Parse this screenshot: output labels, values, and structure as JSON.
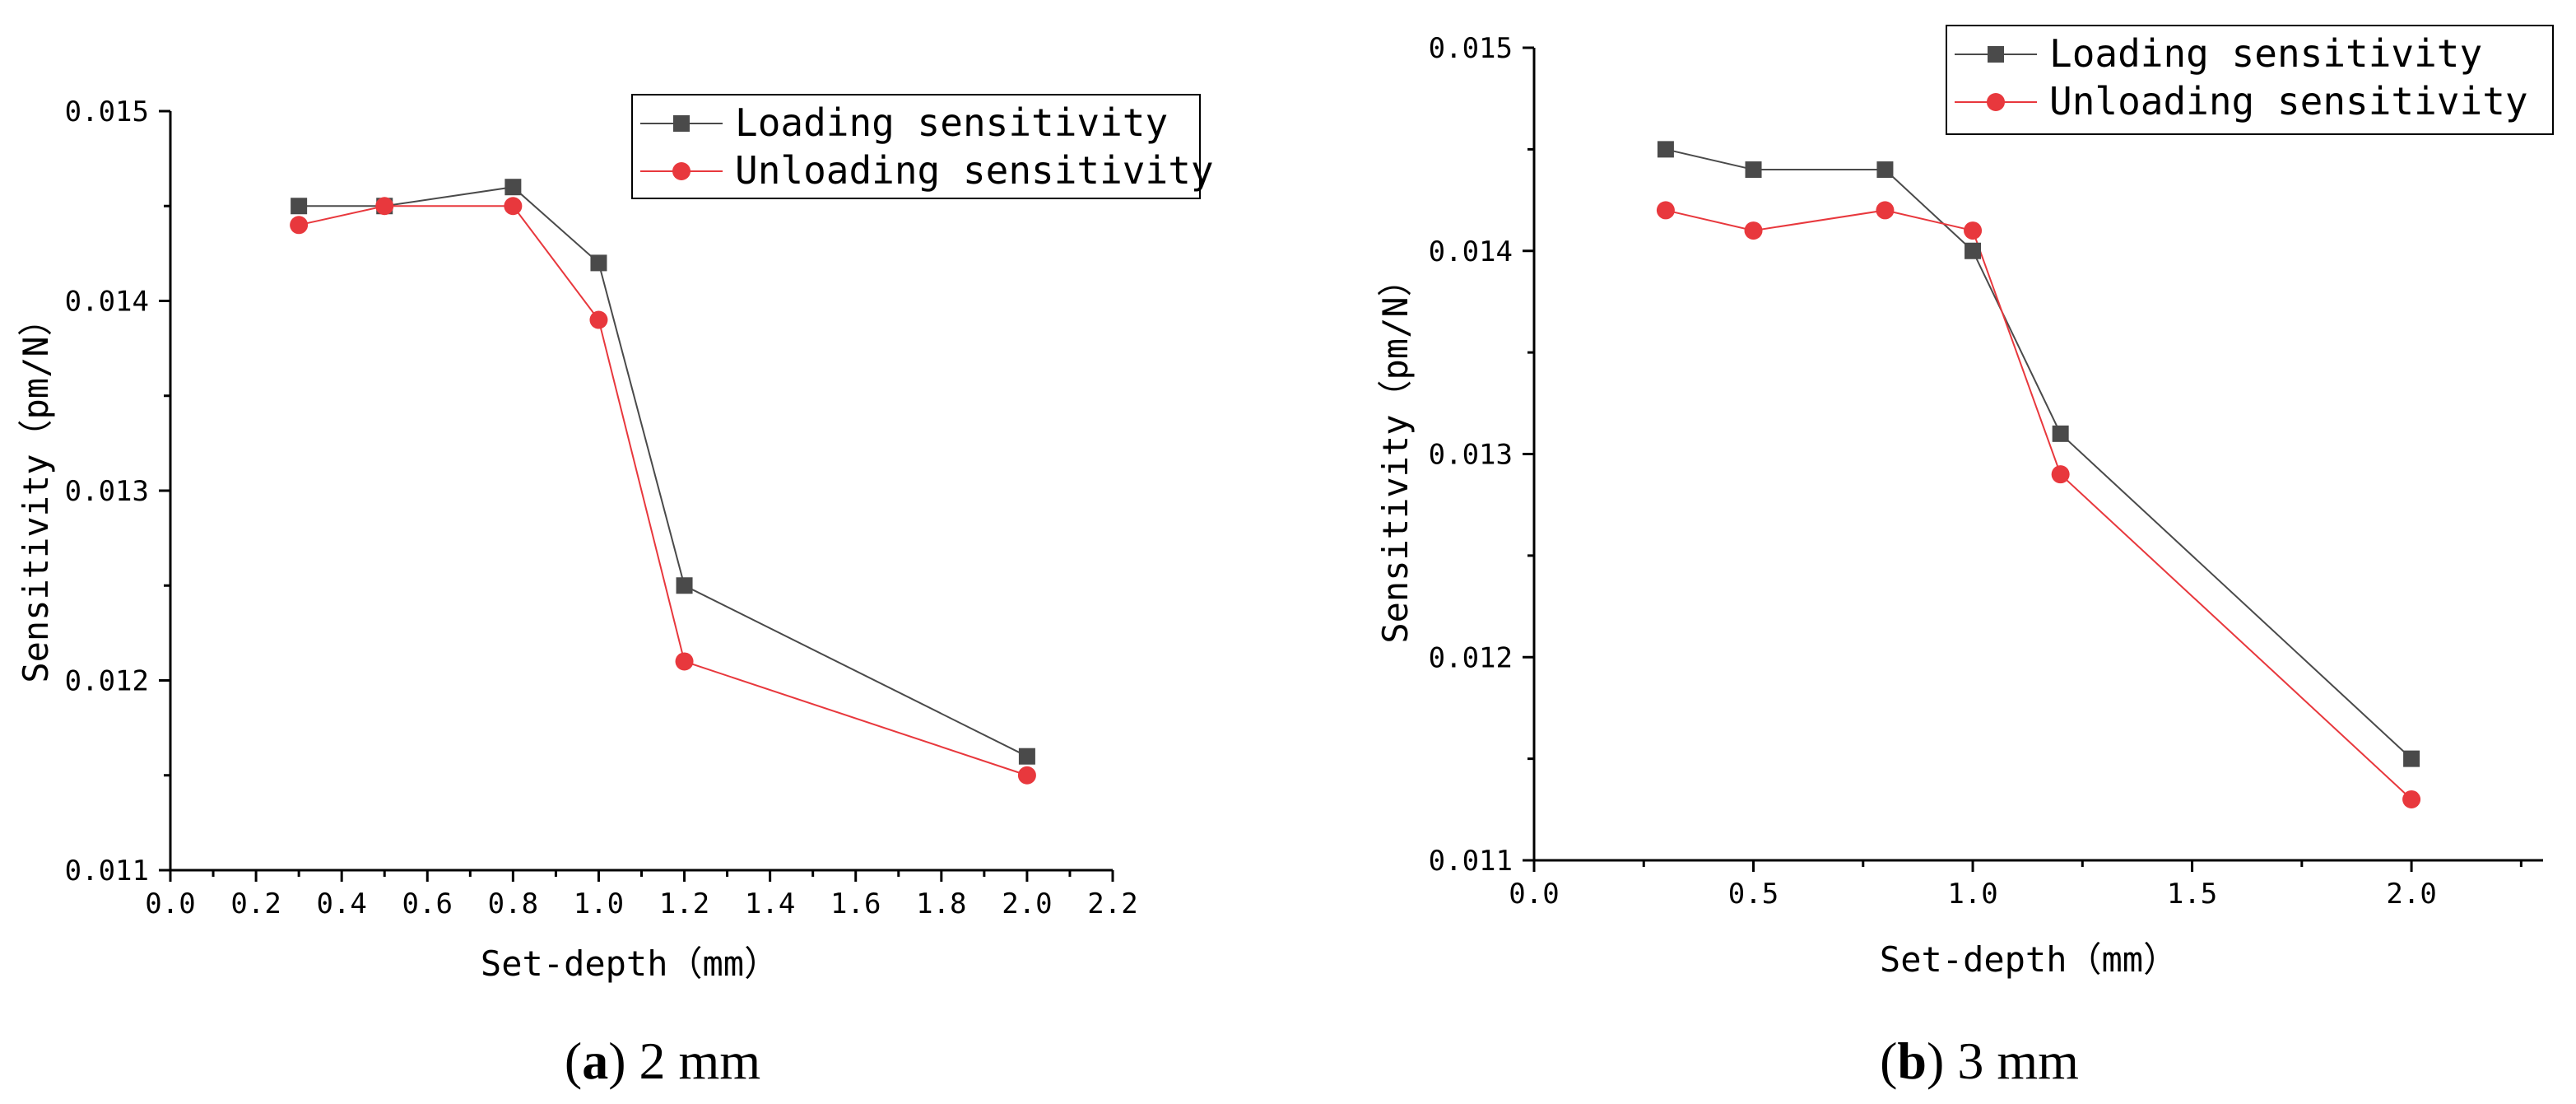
{
  "chart_data": [
    {
      "type": "line",
      "caption_label": "a",
      "caption_text": "2 mm",
      "xlabel": "Set-depth（mm）",
      "ylabel": "Sensitivity（pm/N）",
      "xlim": [
        0.0,
        2.2
      ],
      "ylim": [
        0.011,
        0.015
      ],
      "x_ticks": [
        0.0,
        0.2,
        0.4,
        0.6,
        0.8,
        1.0,
        1.2,
        1.4,
        1.6,
        1.8,
        2.0,
        2.2
      ],
      "x_tick_labels": [
        "0.0",
        "0.2",
        "0.4",
        "0.6",
        "0.8",
        "1.0",
        "1.2",
        "1.4",
        "1.6",
        "1.8",
        "2.0",
        "2.2"
      ],
      "y_ticks": [
        0.011,
        0.012,
        0.013,
        0.014,
        0.015
      ],
      "y_tick_labels": [
        "0.011",
        "0.012",
        "0.013",
        "0.014",
        "0.015"
      ],
      "legend_position": "top-right",
      "series": [
        {
          "name": "Loading sensitivity",
          "color": "#4a4a4a",
          "marker": "square",
          "x": [
            0.3,
            0.5,
            0.8,
            1.0,
            1.2,
            2.0
          ],
          "y": [
            0.0145,
            0.0145,
            0.0146,
            0.0142,
            0.0125,
            0.0116
          ]
        },
        {
          "name": "Unloading sensitivity",
          "color": "#e8383d",
          "marker": "circle",
          "x": [
            0.3,
            0.5,
            0.8,
            1.0,
            1.2,
            2.0
          ],
          "y": [
            0.0144,
            0.0145,
            0.0145,
            0.0139,
            0.0121,
            0.0115
          ]
        }
      ]
    },
    {
      "type": "line",
      "caption_label": "b",
      "caption_text": "3 mm",
      "xlabel": "Set-depth（mm）",
      "ylabel": "Sensitivity（pm/N）",
      "xlim": [
        0.0,
        2.3
      ],
      "ylim": [
        0.011,
        0.015
      ],
      "x_ticks": [
        0.0,
        0.5,
        1.0,
        1.5,
        2.0
      ],
      "x_tick_labels": [
        "0.0",
        "0.5",
        "1.0",
        "1.5",
        "2.0"
      ],
      "y_ticks": [
        0.011,
        0.012,
        0.013,
        0.014,
        0.015
      ],
      "y_tick_labels": [
        "0.011",
        "0.012",
        "0.013",
        "0.014",
        "0.015"
      ],
      "legend_position": "top-right",
      "series": [
        {
          "name": "Loading sensitivity",
          "color": "#4a4a4a",
          "marker": "square",
          "x": [
            0.3,
            0.5,
            0.8,
            1.0,
            1.2,
            2.0
          ],
          "y": [
            0.0145,
            0.0144,
            0.0144,
            0.014,
            0.0131,
            0.0115
          ]
        },
        {
          "name": "Unloading sensitivity",
          "color": "#e8383d",
          "marker": "circle",
          "x": [
            0.3,
            0.5,
            0.8,
            1.0,
            1.2,
            2.0
          ],
          "y": [
            0.0142,
            0.0141,
            0.0142,
            0.0141,
            0.0129,
            0.0113
          ]
        }
      ]
    }
  ]
}
